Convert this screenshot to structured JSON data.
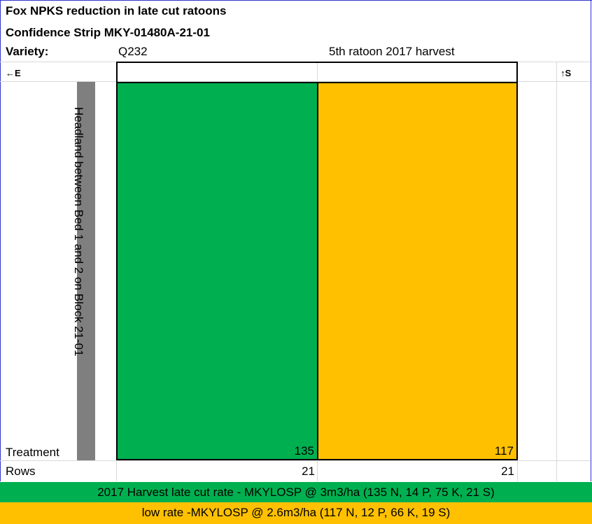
{
  "title_line1": "Fox  NPKS reduction in late cut ratoons",
  "title_line2": "Confidence Strip MKY-01480A-21-01",
  "variety_label": "Variety:",
  "variety_value": "Q232",
  "harvest_label": "5th ratoon 2017 harvest",
  "east_marker": "←E",
  "south_marker": "↑S",
  "headland_text": "Headland between Bed 1 and 2 on Block 21-01",
  "treatment_label": "Treatment",
  "rows_label": "Rows",
  "plots": [
    {
      "treatment": "135",
      "rows": "21",
      "color": "#00b050"
    },
    {
      "treatment": "117",
      "rows": "21",
      "color": "#ffc000"
    }
  ],
  "legend": [
    {
      "text": "2017 Harvest late cut rate - MKYLOSP @ 3m3/ha (135 N, 14 P, 75 K, 21 S)",
      "color": "#00b050"
    },
    {
      "text": "low rate -MKYLOSP @ 2.6m3/ha (117 N, 12 P, 66 K, 19 S)",
      "color": "#ffc000"
    }
  ]
}
